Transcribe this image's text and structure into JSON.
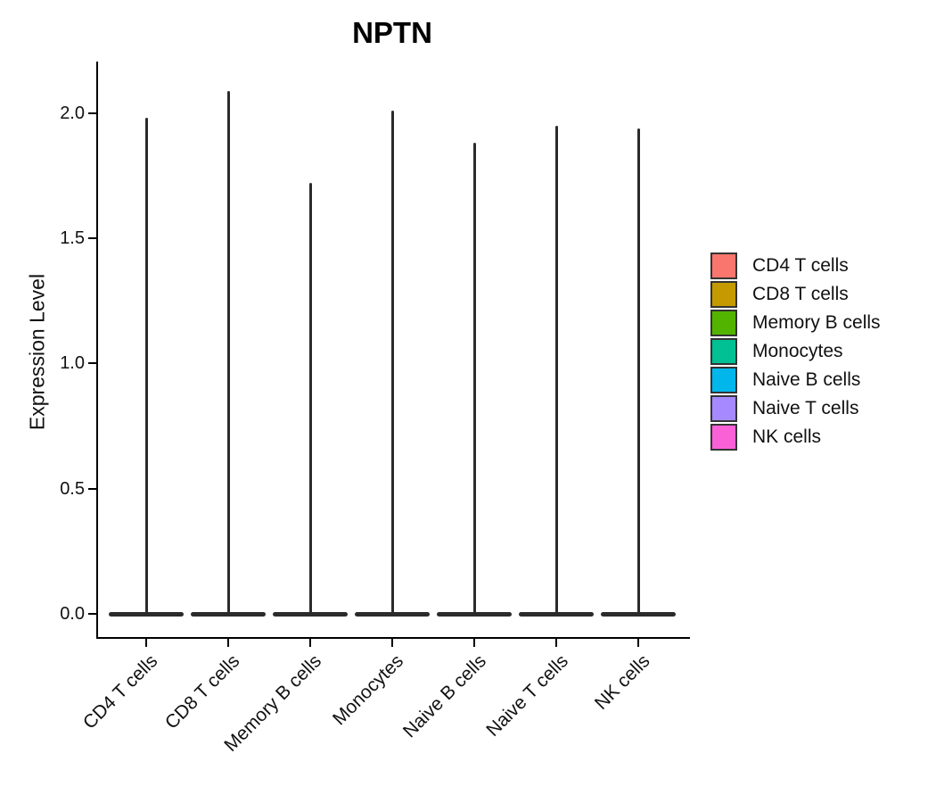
{
  "chart_data": {
    "type": "violin",
    "title": "NPTN",
    "xlabel": "",
    "ylabel": "Expression Level",
    "ylim": [
      -0.1,
      2.21
    ],
    "yticks": [
      0.0,
      0.5,
      1.0,
      1.5,
      2.0
    ],
    "ytick_labels": [
      "0.0",
      "0.5",
      "1.0",
      "1.5",
      "2.0"
    ],
    "grid": false,
    "legend_position": "right",
    "categories": [
      "CD4 T cells",
      "CD8 T cells",
      "Memory B cells",
      "Monocytes",
      "Naive B cells",
      "Naive T cells",
      "NK cells"
    ],
    "series": [
      {
        "name": "CD4 T cells",
        "color": "#F8766D",
        "max_expression": 1.98,
        "bulk_at": 0.0
      },
      {
        "name": "CD8 T cells",
        "color": "#C49A00",
        "max_expression": 2.09,
        "bulk_at": 0.0
      },
      {
        "name": "Memory B cells",
        "color": "#53B400",
        "max_expression": 1.72,
        "bulk_at": 0.0
      },
      {
        "name": "Monocytes",
        "color": "#00C094",
        "max_expression": 2.01,
        "bulk_at": 0.0
      },
      {
        "name": "Naive B cells",
        "color": "#00B6EB",
        "max_expression": 1.88,
        "bulk_at": 0.0
      },
      {
        "name": "Naive T cells",
        "color": "#A58AFF",
        "max_expression": 1.95,
        "bulk_at": 0.0
      },
      {
        "name": "NK cells",
        "color": "#FB61D7",
        "max_expression": 1.94,
        "bulk_at": 0.0
      }
    ],
    "violin_outline_color": "#2b2b2b",
    "note_shape": "each violin collapses to a thin vertical spike with a wide flat base at expression 0"
  }
}
